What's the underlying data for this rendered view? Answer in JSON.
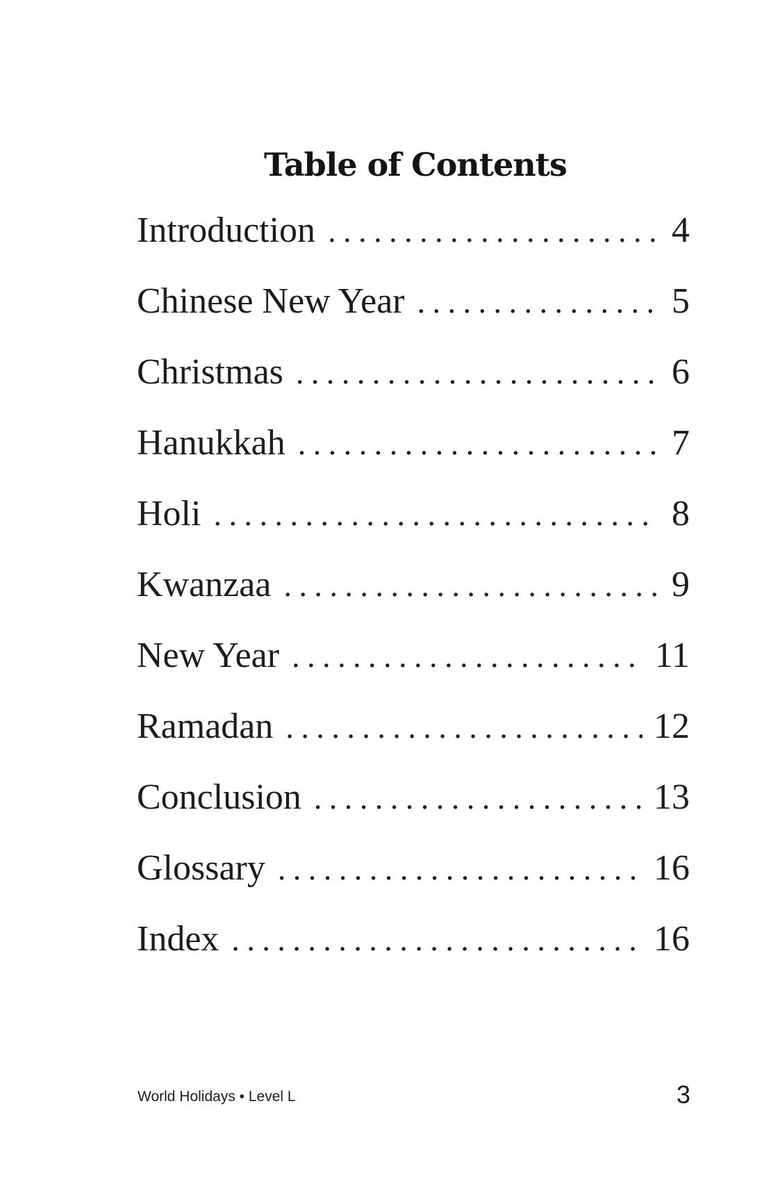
{
  "toc": {
    "title": "Table of Contents",
    "entries": [
      {
        "label": "Introduction",
        "page": "4"
      },
      {
        "label": "Chinese New Year",
        "page": "5"
      },
      {
        "label": "Christmas",
        "page": "6"
      },
      {
        "label": "Hanukkah",
        "page": "7"
      },
      {
        "label": "Holi",
        "page": "8"
      },
      {
        "label": "Kwanzaa",
        "page": "9"
      },
      {
        "label": "New Year",
        "page": "11"
      },
      {
        "label": "Ramadan",
        "page": "12"
      },
      {
        "label": "Conclusion",
        "page": "13"
      },
      {
        "label": "Glossary",
        "page": "16"
      },
      {
        "label": "Index",
        "page": "16"
      }
    ]
  },
  "footer": {
    "book_info": "World Holidays • Level L",
    "page_number": "3"
  }
}
